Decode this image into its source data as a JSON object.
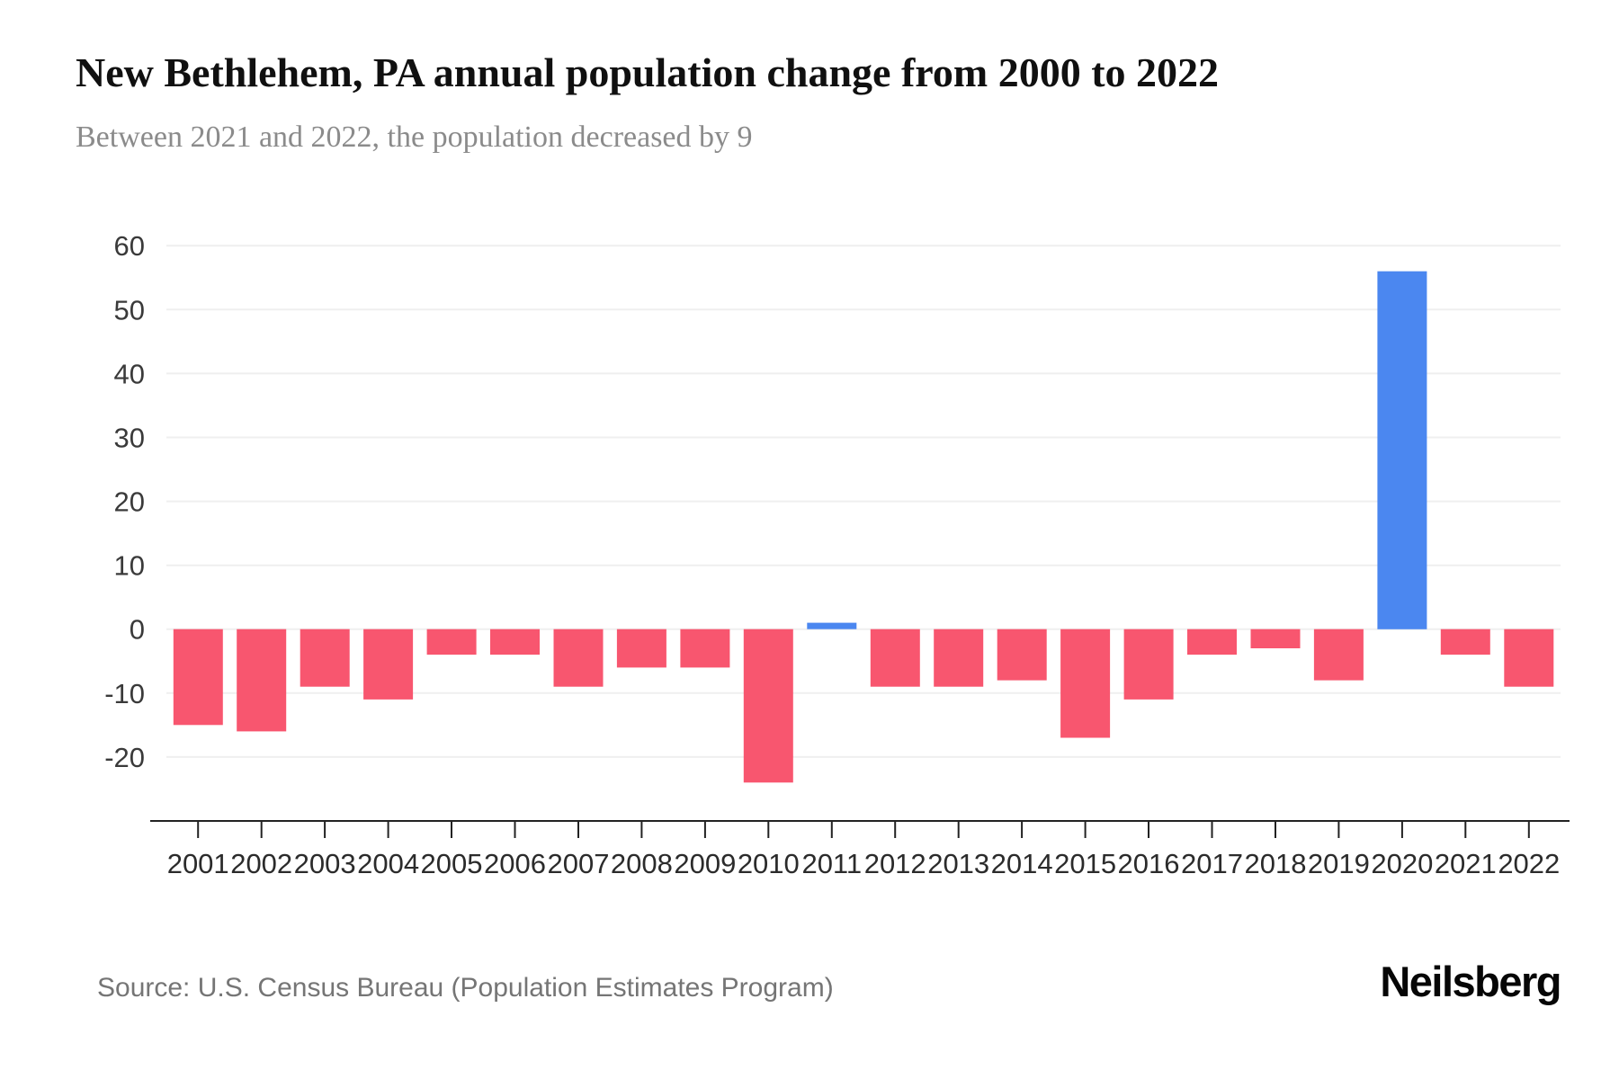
{
  "page": {
    "title": "New Bethlehem, PA annual population change from 2000 to 2022",
    "subtitle": "Between 2021 and 2022, the population decreased by 9",
    "source": "Source: U.S. Census Bureau (Population Estimates Program)",
    "brand": "Neilsberg"
  },
  "chart_data": {
    "type": "bar",
    "title": "New Bethlehem, PA annual population change from 2000 to 2022",
    "subtitle": "Between 2021 and 2022, the population decreased by 9",
    "categories": [
      "2001",
      "2002",
      "2003",
      "2004",
      "2005",
      "2006",
      "2007",
      "2008",
      "2009",
      "2010",
      "2011",
      "2012",
      "2013",
      "2014",
      "2015",
      "2016",
      "2017",
      "2018",
      "2019",
      "2020",
      "2021",
      "2022"
    ],
    "values": [
      -15,
      -16,
      -9,
      -11,
      -4,
      -4,
      -9,
      -6,
      -6,
      -24,
      1,
      -9,
      -9,
      -8,
      -17,
      -11,
      -4,
      -3,
      -8,
      56,
      -4,
      -9
    ],
    "colors": {
      "positive": "#4b87f0",
      "negative": "#f8566f",
      "grid": "#efefef",
      "axis": "#222222",
      "tick_label": "#3a3a3a"
    },
    "xlabel": "",
    "ylabel": "",
    "ylim": [
      -30,
      62
    ],
    "yticks": [
      -20,
      -10,
      0,
      10,
      20,
      30,
      40,
      50,
      60
    ],
    "grid": true,
    "legend": "none"
  }
}
